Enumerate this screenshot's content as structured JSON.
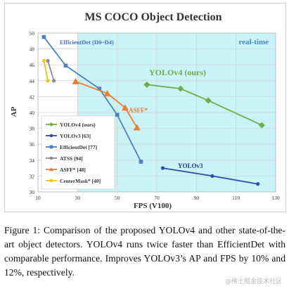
{
  "chart_data": {
    "type": "line",
    "title": "MS COCO Object Detection",
    "xlabel": "FPS (V100)",
    "ylabel": "AP",
    "xlim": [
      10,
      130
    ],
    "ylim": [
      30,
      50
    ],
    "xticks": [
      10,
      30,
      50,
      70,
      90,
      110,
      130
    ],
    "yticks": [
      30,
      32,
      34,
      36,
      38,
      40,
      42,
      44,
      46,
      48,
      50
    ],
    "grid": true,
    "legend_position": "bottom-left",
    "realtime_region": {
      "x_start": 30,
      "label": "real-time",
      "color": "#c9f3f7"
    },
    "annotations": [
      {
        "text": "EfficientDet (D0~D4)",
        "color": "#4472c4"
      },
      {
        "text": "YOLOv4 (ours)",
        "color": "#70ad47"
      },
      {
        "text": "ASFF*",
        "color": "#ed7d31"
      },
      {
        "text": "YOLOv3",
        "color": "#1f3a93"
      }
    ],
    "series": [
      {
        "name": "YOLOv4 (ours)",
        "color": "#70ad47",
        "marker": "diamond",
        "x": [
          65,
          82,
          96,
          123
        ],
        "y": [
          43.5,
          43.0,
          41.5,
          38.4
        ]
      },
      {
        "name": "YOLOv3 [63]",
        "color": "#2e4fa3",
        "marker": "circle",
        "x": [
          73,
          98,
          121
        ],
        "y": [
          33.0,
          32.0,
          31.0
        ]
      },
      {
        "name": "EfficientDet [77]",
        "color": "#4f81bd",
        "marker": "square",
        "x": [
          13,
          24,
          41,
          50,
          62
        ],
        "y": [
          49.5,
          45.9,
          43.0,
          39.7,
          33.8
        ]
      },
      {
        "name": "ATSS [94]",
        "color": "#8c8c8c",
        "marker": "circle",
        "x": [
          15,
          18
        ],
        "y": [
          46.5,
          44.0
        ]
      },
      {
        "name": "ASFF* [48]",
        "color": "#ed7d31",
        "marker": "triangle",
        "x": [
          29,
          45,
          54,
          60
        ],
        "y": [
          43.9,
          42.4,
          40.6,
          38.1
        ]
      },
      {
        "name": "CenterMask* [40]",
        "color": "#f2c318",
        "marker": "circle",
        "x": [
          13,
          15
        ],
        "y": [
          46.5,
          44.0
        ]
      }
    ]
  },
  "caption": "Figure 1: Comparison of the proposed YOLOv4 and other state-of-the-art object detectors. YOLOv4 runs twice faster than EfficientDet with comparable performance. Improves YOLOv3’s AP and FPS by 10% and 12%, respectively.",
  "watermark": "@稀土掘金技术社区"
}
